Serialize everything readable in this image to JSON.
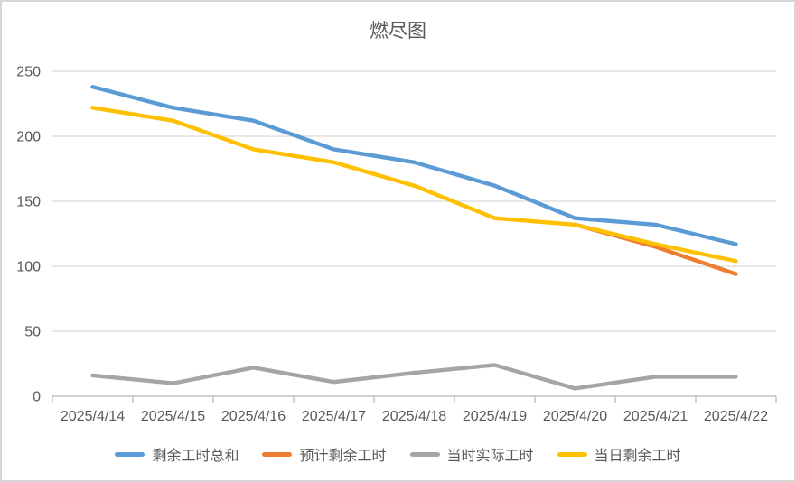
{
  "chart_data": {
    "type": "line",
    "title": "燃尽图",
    "categories": [
      "2025/4/14",
      "2025/4/15",
      "2025/4/16",
      "2025/4/17",
      "2025/4/18",
      "2025/4/19",
      "2025/4/20",
      "2025/4/21",
      "2025/4/22"
    ],
    "xlabel": "",
    "ylabel": "",
    "ylim": [
      0,
      250
    ],
    "y_ticks": [
      0,
      50,
      100,
      150,
      200,
      250
    ],
    "grid": true,
    "legend_position": "bottom",
    "series": [
      {
        "key": "remaining-total",
        "name": "剩余工时总和",
        "color": "#5B9BD5",
        "values": [
          238,
          222,
          212,
          190,
          180,
          162,
          137,
          132,
          117
        ]
      },
      {
        "key": "predicted-remaining",
        "name": "预计剩余工时",
        "color": "#ED7D31",
        "values": [
          null,
          null,
          null,
          null,
          null,
          null,
          132,
          115,
          94
        ]
      },
      {
        "key": "actual-hours",
        "name": "当时实际工时",
        "color": "#A5A5A5",
        "values": [
          16,
          10,
          22,
          11,
          18,
          24,
          6,
          15,
          15
        ]
      },
      {
        "key": "daily-remaining",
        "name": "当日剩余工时",
        "color": "#FFC000",
        "values": [
          222,
          212,
          190,
          180,
          162,
          137,
          132,
          117,
          104
        ]
      }
    ]
  },
  "colors": {
    "background": "#FFFFFF",
    "border": "#D6D6D6",
    "gridline": "#D9D9D9",
    "axis_line": "#BFBFBF",
    "axis_text": "#595959",
    "title_text": "#595959"
  }
}
